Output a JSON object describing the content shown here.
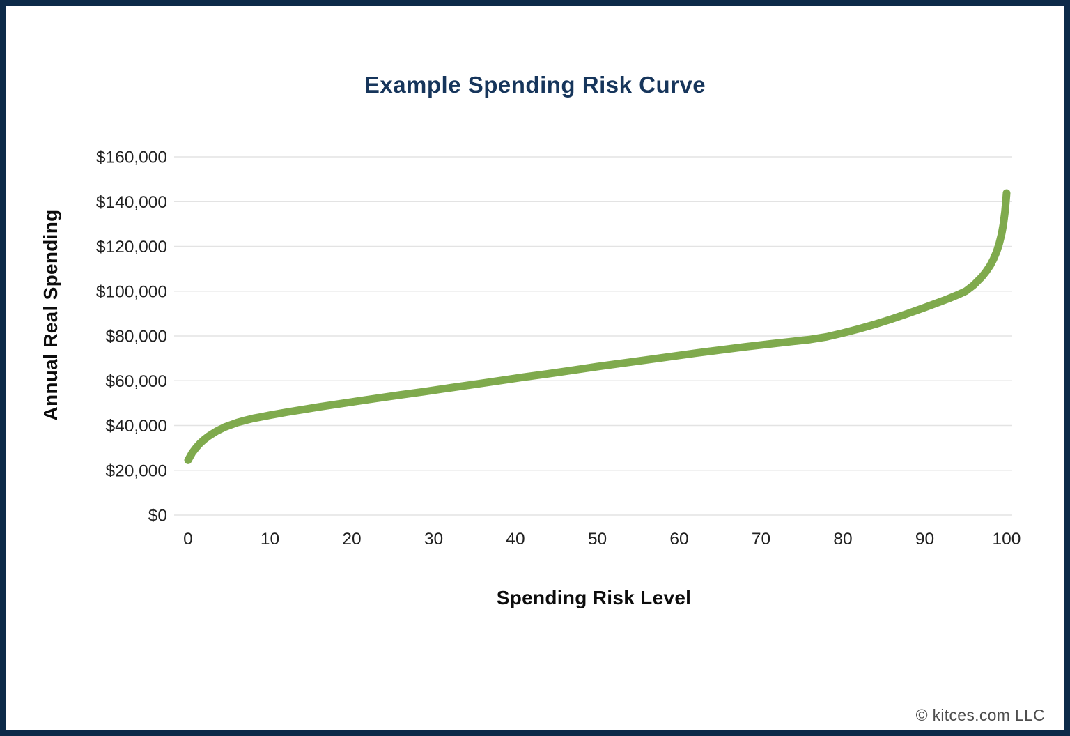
{
  "chart_data": {
    "type": "line",
    "title": "Example Spending Risk Curve",
    "xlabel": "Spending Risk Level",
    "ylabel": "Annual Real Spending",
    "xlim": [
      0,
      100
    ],
    "ylim": [
      0,
      160000
    ],
    "grid": "horizontal-only",
    "legend": false,
    "x_ticks": [
      {
        "value": 0,
        "label": "0"
      },
      {
        "value": 10,
        "label": "10"
      },
      {
        "value": 20,
        "label": "20"
      },
      {
        "value": 30,
        "label": "30"
      },
      {
        "value": 40,
        "label": "40"
      },
      {
        "value": 50,
        "label": "50"
      },
      {
        "value": 60,
        "label": "60"
      },
      {
        "value": 70,
        "label": "70"
      },
      {
        "value": 80,
        "label": "80"
      },
      {
        "value": 90,
        "label": "90"
      },
      {
        "value": 100,
        "label": "100"
      }
    ],
    "y_ticks": [
      {
        "value": 0,
        "label": "$0"
      },
      {
        "value": 20000,
        "label": "$20,000"
      },
      {
        "value": 40000,
        "label": "$40,000"
      },
      {
        "value": 60000,
        "label": "$60,000"
      },
      {
        "value": 80000,
        "label": "$80,000"
      },
      {
        "value": 100000,
        "label": "$100,000"
      },
      {
        "value": 120000,
        "label": "$120,000"
      },
      {
        "value": 140000,
        "label": "$140,000"
      },
      {
        "value": 160000,
        "label": "$160,000"
      }
    ],
    "series": [
      {
        "name": "Spending Risk Curve",
        "color": "#7FAA4D",
        "points": [
          [
            0,
            24500
          ],
          [
            0.5,
            27800
          ],
          [
            1,
            30200
          ],
          [
            1.5,
            32200
          ],
          [
            2,
            33800
          ],
          [
            2.5,
            35200
          ],
          [
            3,
            36400
          ],
          [
            3.5,
            37500
          ],
          [
            4,
            38400
          ],
          [
            4.5,
            39300
          ],
          [
            5,
            40000
          ],
          [
            6,
            41300
          ],
          [
            7,
            42300
          ],
          [
            8,
            43200
          ],
          [
            9,
            43900
          ],
          [
            10,
            44600
          ],
          [
            12,
            45900
          ],
          [
            14,
            47100
          ],
          [
            16,
            48300
          ],
          [
            18,
            49400
          ],
          [
            20,
            50500
          ],
          [
            23,
            52100
          ],
          [
            26,
            53700
          ],
          [
            29,
            55200
          ],
          [
            32,
            56800
          ],
          [
            35,
            58400
          ],
          [
            38,
            60000
          ],
          [
            41,
            61600
          ],
          [
            44,
            63100
          ],
          [
            47,
            64700
          ],
          [
            50,
            66300
          ],
          [
            53,
            67800
          ],
          [
            56,
            69300
          ],
          [
            59,
            70800
          ],
          [
            62,
            72300
          ],
          [
            65,
            73700
          ],
          [
            68,
            75100
          ],
          [
            71,
            76400
          ],
          [
            74,
            77600
          ],
          [
            76,
            78400
          ],
          [
            78,
            79600
          ],
          [
            80,
            81300
          ],
          [
            82,
            83200
          ],
          [
            84,
            85300
          ],
          [
            86,
            87600
          ],
          [
            88,
            90100
          ],
          [
            90,
            92700
          ],
          [
            92,
            95400
          ],
          [
            93,
            96800
          ],
          [
            94,
            98300
          ],
          [
            95,
            100000
          ],
          [
            96,
            102800
          ],
          [
            97,
            106500
          ],
          [
            97.5,
            108800
          ],
          [
            98,
            111500
          ],
          [
            98.4,
            114300
          ],
          [
            98.8,
            117800
          ],
          [
            99.1,
            121200
          ],
          [
            99.4,
            125800
          ],
          [
            99.6,
            129800
          ],
          [
            99.8,
            135600
          ],
          [
            99.9,
            139300
          ],
          [
            100,
            143800
          ]
        ]
      }
    ]
  },
  "footer": {
    "text": "© kitces.com LLC"
  },
  "colors": {
    "frame_navy": "#0D2A49",
    "title_navy": "#16355B",
    "curve_green": "#7FAA4D",
    "gridline_gray": "#E3E3E3",
    "tick_text": "#212121",
    "footer_text": "#4E4E4E"
  }
}
